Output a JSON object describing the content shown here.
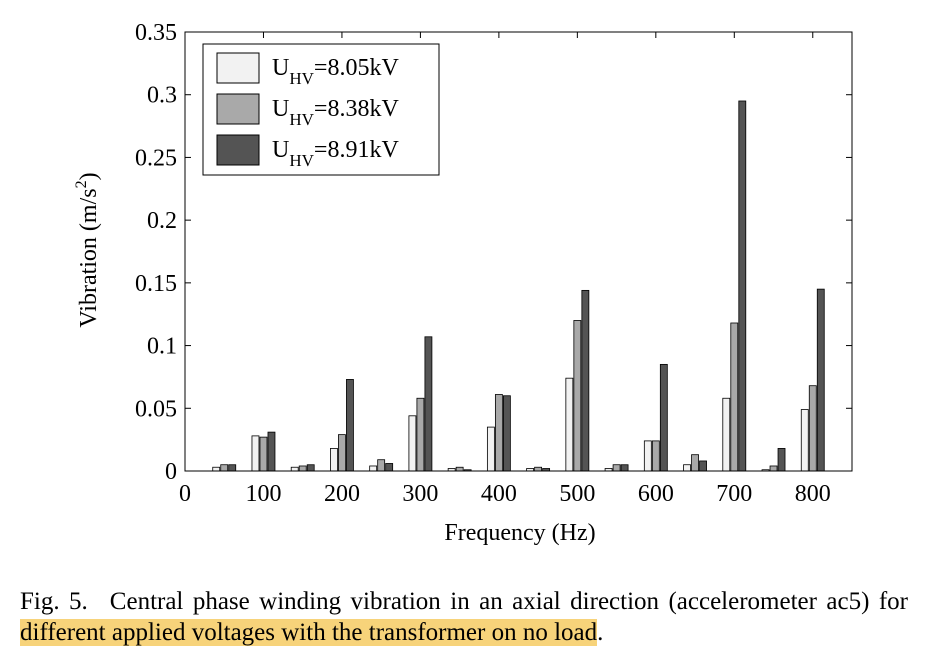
{
  "chart_data": {
    "type": "bar",
    "ylabel_main": "Vibration (m/s",
    "ylabel_sup": "2",
    "ylabel_close": ")",
    "xlabel": "Frequency (Hz)",
    "xlim": [
      0,
      850
    ],
    "ylim": [
      0,
      0.35
    ],
    "xticks": [
      0,
      100,
      200,
      300,
      400,
      500,
      600,
      700,
      800
    ],
    "xtick_labels": [
      "0",
      "100",
      "200",
      "300",
      "400",
      "500",
      "600",
      "700",
      "800"
    ],
    "yticks": [
      0,
      0.05,
      0.1,
      0.15,
      0.2,
      0.25,
      0.3,
      0.35
    ],
    "ytick_labels": [
      "0",
      "0.05",
      "0.1",
      "0.15",
      "0.2",
      "0.25",
      "0.3",
      "0.35"
    ],
    "categories": [
      50,
      100,
      150,
      200,
      250,
      300,
      350,
      400,
      450,
      500,
      550,
      600,
      650,
      700,
      750,
      800
    ],
    "legend_position": "top-left",
    "series": [
      {
        "name": "U",
        "sub": "HV",
        "value_label": "=8.05kV",
        "color": "#f2f2f2",
        "values": [
          0.003,
          0.028,
          0.003,
          0.018,
          0.004,
          0.044,
          0.002,
          0.035,
          0.002,
          0.074,
          0.002,
          0.024,
          0.005,
          0.058,
          0.001,
          0.049
        ]
      },
      {
        "name": "U",
        "sub": "HV",
        "value_label": "=8.38kV",
        "color": "#a9a9a9",
        "values": [
          0.005,
          0.027,
          0.004,
          0.029,
          0.009,
          0.058,
          0.003,
          0.061,
          0.003,
          0.12,
          0.005,
          0.024,
          0.013,
          0.118,
          0.004,
          0.068
        ]
      },
      {
        "name": "U",
        "sub": "HV",
        "value_label": "=8.91kV",
        "color": "#545454",
        "values": [
          0.005,
          0.031,
          0.005,
          0.073,
          0.006,
          0.107,
          0.001,
          0.06,
          0.002,
          0.144,
          0.005,
          0.085,
          0.008,
          0.295,
          0.018,
          0.145
        ]
      }
    ]
  },
  "caption": {
    "fig_label": "Fig. 5.",
    "text_plain": "Central phase winding vibration in an axial direction (accelerometer ac5) for ",
    "text_highlight": "different applied voltages with the transformer on no load",
    "text_end": "."
  },
  "colors": {
    "highlight": "#f7d37a"
  }
}
